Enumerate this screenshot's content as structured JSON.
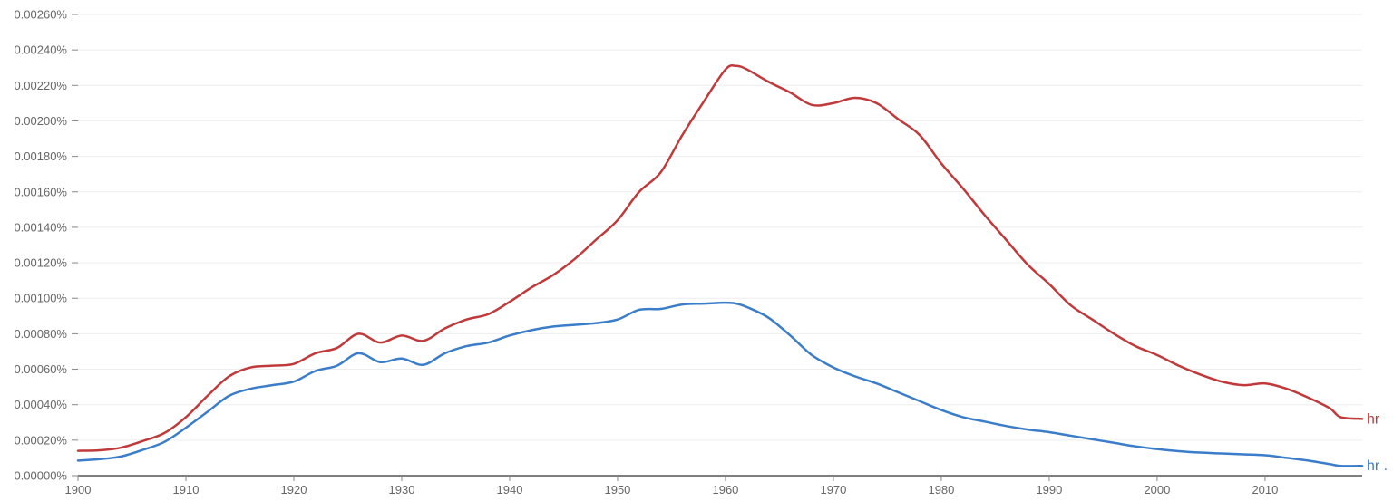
{
  "chart_data": {
    "type": "line",
    "title": "",
    "xlabel": "",
    "ylabel": "",
    "xlim": [
      1900,
      2019
    ],
    "ylim": [
      0,
      0.0026
    ],
    "grid": true,
    "y_ticks": [
      "0.00000%",
      "0.00020%",
      "0.00040%",
      "0.00060%",
      "0.00080%",
      "0.00100%",
      "0.00120%",
      "0.00140%",
      "0.00160%",
      "0.00180%",
      "0.00200%",
      "0.00220%",
      "0.00240%",
      "0.00260%"
    ],
    "x_ticks": [
      "1900",
      "1910",
      "1920",
      "1930",
      "1940",
      "1950",
      "1960",
      "1970",
      "1980",
      "1990",
      "2000",
      "2010"
    ],
    "x": [
      1900,
      1902,
      1904,
      1906,
      1908,
      1910,
      1912,
      1914,
      1916,
      1918,
      1920,
      1922,
      1924,
      1926,
      1928,
      1930,
      1932,
      1934,
      1936,
      1938,
      1940,
      1942,
      1944,
      1946,
      1948,
      1950,
      1952,
      1954,
      1956,
      1958,
      1960,
      1961,
      1962,
      1964,
      1966,
      1968,
      1970,
      1972,
      1974,
      1976,
      1978,
      1980,
      1982,
      1984,
      1986,
      1988,
      1990,
      1992,
      1994,
      1996,
      1998,
      2000,
      2002,
      2004,
      2006,
      2008,
      2010,
      2012,
      2014,
      2016,
      2017,
      2019
    ],
    "series": [
      {
        "name": "hr",
        "color": "#c0393b",
        "values": [
          0.00014,
          0.000143,
          0.000158,
          0.000195,
          0.00024,
          0.00033,
          0.00045,
          0.00056,
          0.00061,
          0.00062,
          0.00063,
          0.00069,
          0.00072,
          0.0008,
          0.00075,
          0.00079,
          0.00076,
          0.00083,
          0.00088,
          0.00091,
          0.00098,
          0.00106,
          0.00113,
          0.00122,
          0.00133,
          0.00144,
          0.0016,
          0.00171,
          0.00192,
          0.00211,
          0.00229,
          0.00231,
          0.00229,
          0.00222,
          0.00216,
          0.00209,
          0.0021,
          0.00213,
          0.0021,
          0.00201,
          0.00192,
          0.00176,
          0.00162,
          0.00147,
          0.00133,
          0.00119,
          0.00108,
          0.00096,
          0.00088,
          0.0008,
          0.00073,
          0.00068,
          0.00062,
          0.00057,
          0.00053,
          0.00051,
          0.00052,
          0.00049,
          0.00044,
          0.00038,
          0.00033,
          0.00032
        ]
      },
      {
        "name": "hr .",
        "color": "#3b7dc9",
        "values": [
          8.5e-05,
          9.3e-05,
          0.000108,
          0.000145,
          0.00019,
          0.00027,
          0.00036,
          0.00045,
          0.00049,
          0.00051,
          0.00053,
          0.00059,
          0.00062,
          0.00069,
          0.00064,
          0.00066,
          0.000625,
          0.00069,
          0.00073,
          0.00075,
          0.00079,
          0.00082,
          0.00084,
          0.00085,
          0.00086,
          0.00088,
          0.000935,
          0.00094,
          0.000965,
          0.00097,
          0.000975,
          0.00097,
          0.00095,
          0.00089,
          0.00079,
          0.00068,
          0.00061,
          0.00056,
          0.00052,
          0.00047,
          0.00042,
          0.00037,
          0.00033,
          0.000305,
          0.00028,
          0.00026,
          0.000245,
          0.000225,
          0.000205,
          0.000185,
          0.000165,
          0.00015,
          0.000138,
          0.00013,
          0.000125,
          0.00012,
          0.000115,
          0.0001,
          8.5e-05,
          6.5e-05,
          5.5e-05,
          5.5e-05
        ]
      }
    ]
  }
}
